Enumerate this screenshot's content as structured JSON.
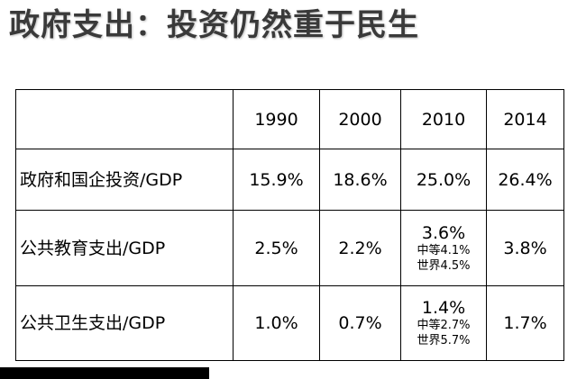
{
  "title": "政府支出：投资仍然重于民生",
  "table": {
    "header": [
      "",
      "1990",
      "2000",
      "2010",
      "2014"
    ],
    "rows": [
      {
        "label": "政府和国企投资/GDP",
        "cells": [
          {
            "main": "15.9%"
          },
          {
            "main": "18.6%"
          },
          {
            "main": "25.0%"
          },
          {
            "main": "26.4%"
          }
        ]
      },
      {
        "label": "公共教育支出/GDP",
        "cells": [
          {
            "main": "2.5%"
          },
          {
            "main": "2.2%"
          },
          {
            "main": "3.6%",
            "sub1": "中等4.1%",
            "sub2": "世界4.5%"
          },
          {
            "main": "3.8%"
          }
        ]
      },
      {
        "label": "公共卫生支出/GDP",
        "cells": [
          {
            "main": "1.0%"
          },
          {
            "main": "0.7%"
          },
          {
            "main": "1.4%",
            "sub1": "中等2.7%",
            "sub2": "世界5.7%"
          },
          {
            "main": "1.7%"
          }
        ]
      }
    ]
  }
}
